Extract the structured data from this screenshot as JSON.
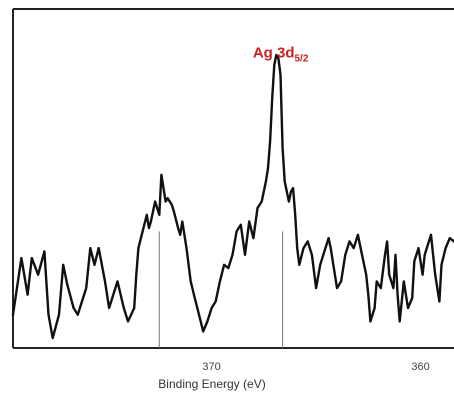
{
  "chart_data": {
    "type": "line",
    "title": "",
    "xlabel": "Binding Energy (eV)",
    "ylabel": "",
    "x_reversed": true,
    "xlim": [
      379.5,
      358.4
    ],
    "x_ticks": [
      {
        "value": 370,
        "label": "370"
      },
      {
        "value": 360,
        "label": "360"
      }
    ],
    "ylim": [
      0,
      100
    ],
    "grid": false,
    "annotation": {
      "text_main": "Ag 3d",
      "text_sub": "5/2",
      "x": 366.6,
      "y": 90,
      "color": "#cc2020"
    },
    "marker_lines": [
      {
        "x": 372.5,
        "y": 35
      },
      {
        "x": 366.6,
        "y": 35
      }
    ],
    "series": [
      {
        "x": [
          379.5,
          379.1,
          378.8,
          378.6,
          378.3,
          378.0,
          377.8,
          377.6,
          377.3,
          377.1,
          376.9,
          376.6,
          376.4,
          376.2,
          376.0,
          375.8,
          375.6,
          375.4,
          375.1,
          374.9,
          374.7,
          374.5,
          374.2,
          374.0,
          373.7,
          373.6,
          373.5,
          373.3,
          373.1,
          373.0,
          372.9,
          372.7,
          372.5,
          372.4,
          372.2,
          372.1,
          371.9,
          371.8,
          371.6,
          371.5,
          371.4,
          371.2,
          371.0,
          370.8,
          370.6,
          370.4,
          370.2,
          370.0,
          369.8,
          369.6,
          369.4,
          369.2,
          369.0,
          368.8,
          368.6,
          368.4,
          368.2,
          368.0,
          367.8,
          367.6,
          367.4,
          367.3,
          367.2,
          367.1,
          367.0,
          366.9,
          366.8,
          366.7,
          366.6,
          366.5,
          366.4,
          366.3,
          366.2,
          366.1,
          366.0,
          365.9,
          365.8,
          365.6,
          365.4,
          365.2,
          365.0,
          364.8,
          364.6,
          364.4,
          364.3,
          364.2,
          364.0,
          363.8,
          363.6,
          363.4,
          363.2,
          363.0,
          362.8,
          362.6,
          362.5,
          362.4,
          362.2,
          362.1,
          361.9,
          361.7,
          361.6,
          361.5,
          361.3,
          361.2,
          361.1,
          361.0,
          360.8,
          360.6,
          360.4,
          360.3,
          360.1,
          359.9,
          359.8,
          359.7,
          359.5,
          359.3,
          359.1,
          359.0,
          358.8,
          358.6,
          358.4
        ],
        "y": [
          10,
          27,
          16,
          27,
          22,
          29,
          10,
          3,
          10,
          25,
          19,
          12,
          10,
          14,
          18,
          30,
          25,
          30,
          20,
          12,
          16,
          20,
          12,
          8,
          12,
          22,
          30,
          35,
          40,
          36,
          38,
          44,
          40,
          52,
          44,
          45,
          43,
          41,
          36,
          34,
          38,
          30,
          20,
          15,
          10,
          5,
          8,
          12,
          14,
          20,
          25,
          24,
          28,
          35,
          37,
          28,
          38,
          33,
          42,
          44,
          50,
          54,
          62,
          75,
          85,
          88,
          87,
          82,
          60,
          50,
          47,
          44,
          47,
          48,
          40,
          30,
          25,
          30,
          32,
          28,
          18,
          25,
          29,
          33,
          30,
          26,
          18,
          20,
          28,
          32,
          30,
          34,
          28,
          22,
          16,
          8,
          12,
          20,
          18,
          28,
          32,
          22,
          18,
          28,
          16,
          8,
          20,
          12,
          15,
          26,
          30,
          22,
          28,
          30,
          34,
          22,
          14,
          25,
          30,
          33,
          32
        ],
        "color": "#111111"
      }
    ]
  }
}
